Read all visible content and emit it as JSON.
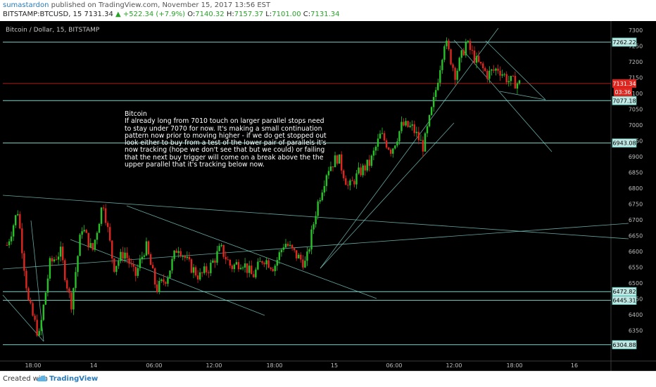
{
  "header": {
    "author": "sumastardon",
    "published": "published on TradingView.com, November 15, 2017 13:56 EST",
    "symbol": "BITSTAMP:BTCUSD, 15",
    "last": "7131.34",
    "change": "▲ +522.34 (+7.9%)",
    "o_label": "O:",
    "o": "7140.32",
    "h_label": "H:",
    "h": "7157.37",
    "l_label": "L:",
    "l": "7101.00",
    "c_label": "C:",
    "c": "7131.34"
  },
  "chart_title": "Bitcoin / Dollar, 15, BITSTAMP",
  "annotation": {
    "title": "Bitcoin",
    "body": "If already long from 7010 touch on larger parallel stops need to stay under 7070 for now. It's making a small continuation pattern now prior to moving higher - if we do get stopped out look either to buy from a test of the lower pair of parallels it's now tracking (hope we don't see that but we could) or failing that the next buy trigger will come on a break above the the upper parallel that it's tracking below now."
  },
  "footer": {
    "created_with": "Created with",
    "brand": "TradingView"
  },
  "colors": {
    "up": "#27c227",
    "down": "#e0261f",
    "line": "#7fd1c8",
    "background": "#000000"
  },
  "chart_data": {
    "type": "candlestick",
    "x_ticks": [
      "18:00",
      "14",
      "06:00",
      "12:00",
      "18:00",
      "15",
      "06:00",
      "12:00",
      "18:00",
      "16"
    ],
    "y_ticks": [
      6350,
      6400,
      6450,
      6500,
      6550,
      6600,
      6650,
      6700,
      6750,
      6800,
      6850,
      6900,
      6950,
      7000,
      7050,
      7100,
      7150,
      7200,
      7250,
      7300
    ],
    "ylim": [
      6280,
      7320
    ],
    "horizontal_levels": [
      7262.22,
      7077.18,
      6943.08,
      6472.82,
      6445.31,
      6304.88
    ],
    "price_labels": [
      {
        "value": 7262.22,
        "text": "7262.22"
      },
      {
        "value": 7131.34,
        "text": "7131.34"
      },
      {
        "value": 7077.18,
        "text": "7077.18"
      },
      {
        "value": 6943.08,
        "text": "6943.08"
      },
      {
        "value": 6472.82,
        "text": "6472.82"
      },
      {
        "value": 6445.31,
        "text": "6445.31"
      },
      {
        "value": 6304.88,
        "text": "6304.88"
      }
    ],
    "countdown": "03:36",
    "price_path": [
      6620,
      6730,
      6440,
      6330,
      6560,
      6600,
      6430,
      6680,
      6600,
      6760,
      6550,
      6600,
      6520,
      6620,
      6480,
      6520,
      6620,
      6560,
      6520,
      6550,
      6610,
      6550,
      6570,
      6520,
      6580,
      6550,
      6630,
      6590,
      6560,
      6740,
      6860,
      6900,
      6800,
      6850,
      6880,
      6970,
      6920,
      7000,
      6990,
      6930,
      7080,
      7270,
      7160,
      7260,
      7200,
      7160,
      7180,
      7140,
      7131
    ]
  }
}
